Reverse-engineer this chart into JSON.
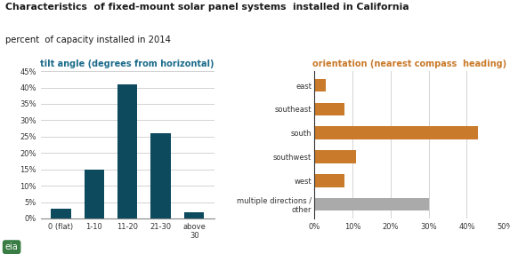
{
  "title": "Characteristics  of fixed-mount solar panel systems  installed in California",
  "subtitle": "percent  of capacity installed in 2014",
  "title_color": "#1a1a1a",
  "subtitle_color": "#1a1a1a",
  "left_title": "tilt angle (degrees from horizontal)",
  "left_categories": [
    "0 (flat)",
    "1-10",
    "11-20",
    "21-30",
    "above\n30"
  ],
  "left_values": [
    3,
    15,
    41,
    26,
    2
  ],
  "left_bar_color": "#0D4A5E",
  "left_ylim": [
    0,
    45
  ],
  "left_yticks": [
    0,
    5,
    10,
    15,
    20,
    25,
    30,
    35,
    40,
    45
  ],
  "right_title": "orientation (nearest compass  heading)",
  "right_categories": [
    "east",
    "southeast",
    "south",
    "southwest",
    "west",
    "multiple directions /\nother"
  ],
  "right_values": [
    3,
    8,
    43,
    11,
    8,
    30
  ],
  "right_bar_colors": [
    "#C97A2A",
    "#C97A2A",
    "#C97A2A",
    "#C97A2A",
    "#C97A2A",
    "#AAAAAA"
  ],
  "right_xlim": [
    0,
    50
  ],
  "right_xticks": [
    0,
    10,
    20,
    30,
    40,
    50
  ],
  "left_title_color": "#1B6B8A",
  "right_title_color": "#C97A2A",
  "grid_color": "#CCCCCC",
  "bg_color": "#FFFFFF",
  "axes_bg_color": "#FFFFFF"
}
